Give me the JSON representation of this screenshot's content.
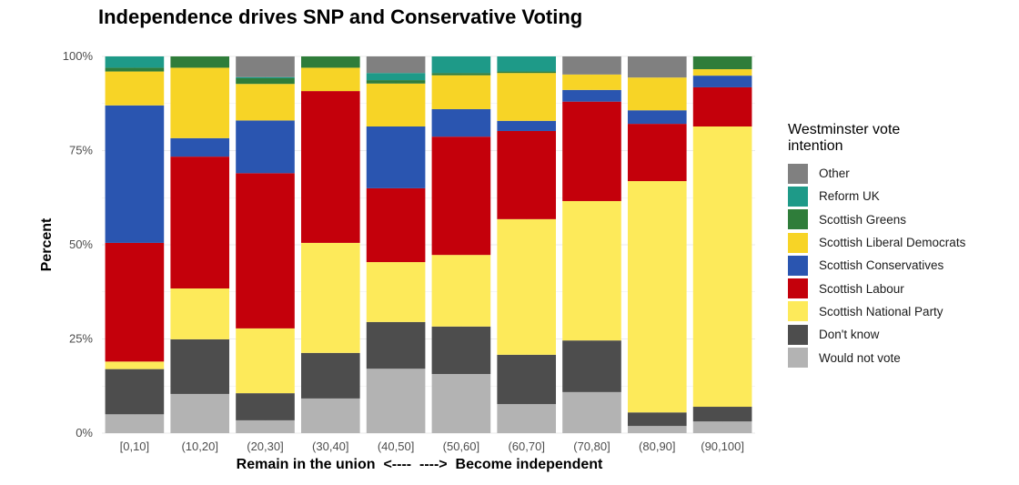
{
  "chart_data": {
    "type": "bar",
    "stacked": true,
    "title": "Independence drives SNP and Conservative Voting",
    "xlabel": "Remain in the union  <----  ---->  Become independent",
    "ylabel": "Percent",
    "ylim": [
      0,
      100
    ],
    "yticks": [
      "0%",
      "25%",
      "50%",
      "75%",
      "100%"
    ],
    "grid": true,
    "legend_title": "Westminster vote intention",
    "legend_position": "right",
    "categories": [
      "[0,10]",
      "(10,20]",
      "(20,30]",
      "(30,40]",
      "(40,50]",
      "(50,60]",
      "(60,70]",
      "(70,80]",
      "(80,90]",
      "(90,100]"
    ],
    "series": [
      {
        "name": "Would not vote",
        "color": "#b3b3b3",
        "values": [
          5.0,
          10.4,
          3.4,
          9.2,
          17.1,
          15.7,
          7.7,
          10.9,
          1.9,
          3.1
        ]
      },
      {
        "name": "Don't know",
        "color": "#4d4d4d",
        "values": [
          12.0,
          14.5,
          7.2,
          12.1,
          12.4,
          12.6,
          13.1,
          13.7,
          3.6,
          3.9
        ]
      },
      {
        "name": "Scottish National Party",
        "color": "#fdea5a",
        "values": [
          2.0,
          13.5,
          17.2,
          29.2,
          15.9,
          19.0,
          36.0,
          37.0,
          61.4,
          74.4
        ]
      },
      {
        "name": "Scottish Labour",
        "color": "#c4000b",
        "values": [
          31.5,
          35.0,
          41.2,
          40.3,
          19.6,
          31.4,
          23.4,
          26.4,
          15.2,
          10.4
        ]
      },
      {
        "name": "Scottish Conservatives",
        "color": "#2a55b0",
        "values": [
          36.5,
          4.9,
          14.0,
          0,
          16.4,
          7.3,
          2.7,
          3.1,
          3.6,
          3.1
        ]
      },
      {
        "name": "Scottish Liberal Democrats",
        "color": "#f7d426",
        "values": [
          9.0,
          18.7,
          9.7,
          6.2,
          11.4,
          9.0,
          12.7,
          4.1,
          8.7,
          1.7
        ]
      },
      {
        "name": "Scottish Greens",
        "color": "#2f7d3a",
        "values": [
          1.0,
          3.0,
          1.5,
          3.0,
          0.9,
          0.6,
          0.4,
          0,
          0,
          3.4
        ]
      },
      {
        "name": "Reform UK",
        "color": "#1e9a88",
        "values": [
          3.0,
          0,
          0.3,
          0,
          1.9,
          4.4,
          4.0,
          0,
          0,
          0
        ]
      },
      {
        "name": "Other",
        "color": "#808080",
        "values": [
          0,
          0,
          5.5,
          0,
          4.4,
          0,
          0,
          4.8,
          5.6,
          0
        ]
      }
    ]
  }
}
